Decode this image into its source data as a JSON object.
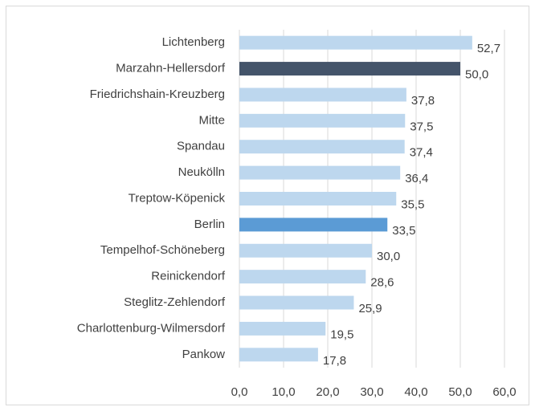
{
  "chart_data": {
    "type": "bar",
    "orientation": "horizontal",
    "categories": [
      "Lichtenberg",
      "Marzahn-Hellersdorf",
      "Friedrichshain-Kreuzberg",
      "Mitte",
      "Spandau",
      "Neukölln",
      "Treptow-Köpenick",
      "Berlin",
      "Tempelhof-Schöneberg",
      "Reinickendorf",
      "Steglitz-Zehlendorf",
      "Charlottenburg-Wilmersdorf",
      "Pankow"
    ],
    "values": [
      52.7,
      50.0,
      37.8,
      37.5,
      37.4,
      36.4,
      35.5,
      33.5,
      30.0,
      28.6,
      25.9,
      19.5,
      17.8
    ],
    "value_labels": [
      "52,7",
      "50,0",
      "37,8",
      "37,5",
      "37,4",
      "36,4",
      "35,5",
      "33,5",
      "30,0",
      "28,6",
      "25,9",
      "19,5",
      "17,8"
    ],
    "colors": [
      "#bdd7ee",
      "#44546a",
      "#bdd7ee",
      "#bdd7ee",
      "#bdd7ee",
      "#bdd7ee",
      "#bdd7ee",
      "#5b9bd5",
      "#bdd7ee",
      "#bdd7ee",
      "#bdd7ee",
      "#bdd7ee",
      "#bdd7ee"
    ],
    "xlim": [
      0,
      60
    ],
    "xticks": [
      {
        "value": 0,
        "label": "0,0"
      },
      {
        "value": 10,
        "label": "10,0"
      },
      {
        "value": 20,
        "label": "20,0"
      },
      {
        "value": 30,
        "label": "30,0"
      },
      {
        "value": 40,
        "label": "40,0"
      },
      {
        "value": 50,
        "label": "50,0"
      },
      {
        "value": 60,
        "label": "60,0"
      }
    ],
    "grid": true
  }
}
